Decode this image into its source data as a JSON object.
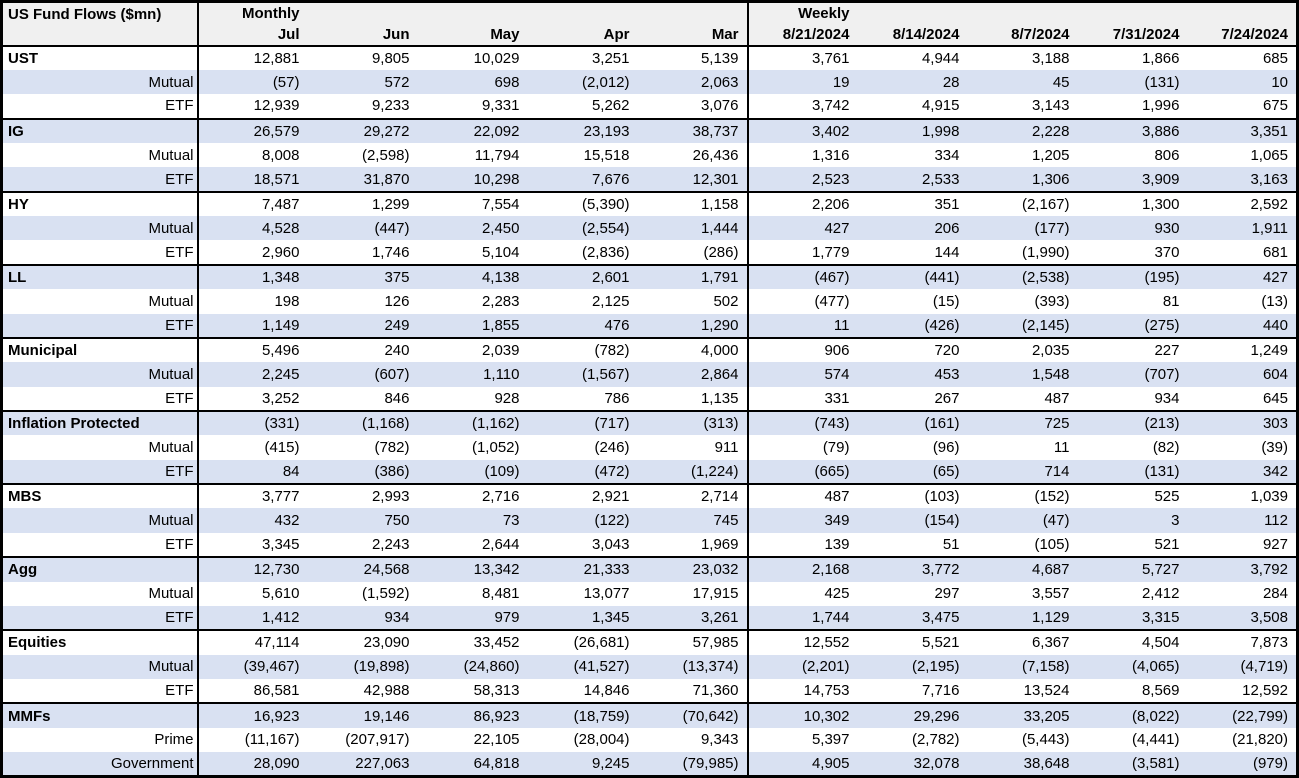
{
  "chart_data": {
    "type": "table",
    "title": "US Fund Flows ($mn)",
    "units": "$mn",
    "layout": {
      "striped": true,
      "stripe_color": "#d9e1f2",
      "header_bg": "#f0f0f0",
      "border_color": "#000000"
    },
    "sections": {
      "monthly": {
        "label": "Monthly",
        "columns": [
          "Jul",
          "Jun",
          "May",
          "Apr",
          "Mar"
        ]
      },
      "weekly": {
        "label": "Weekly",
        "columns": [
          "8/21/2024",
          "8/14/2024",
          "8/7/2024",
          "7/31/2024",
          "7/24/2024"
        ]
      }
    },
    "groups": [
      {
        "name": "UST",
        "rows": [
          {
            "label": "UST",
            "is_total": true,
            "monthly": [
              "12,881",
              "9,805",
              "10,029",
              "3,251",
              "5,139"
            ],
            "weekly": [
              "3,761",
              "4,944",
              "3,188",
              "1,866",
              "685"
            ]
          },
          {
            "label": "Mutual",
            "is_total": false,
            "monthly": [
              "(57)",
              "572",
              "698",
              "(2,012)",
              "2,063"
            ],
            "weekly": [
              "19",
              "28",
              "45",
              "(131)",
              "10"
            ]
          },
          {
            "label": "ETF",
            "is_total": false,
            "monthly": [
              "12,939",
              "9,233",
              "9,331",
              "5,262",
              "3,076"
            ],
            "weekly": [
              "3,742",
              "4,915",
              "3,143",
              "1,996",
              "675"
            ]
          }
        ]
      },
      {
        "name": "IG",
        "rows": [
          {
            "label": "IG",
            "is_total": true,
            "monthly": [
              "26,579",
              "29,272",
              "22,092",
              "23,193",
              "38,737"
            ],
            "weekly": [
              "3,402",
              "1,998",
              "2,228",
              "3,886",
              "3,351"
            ]
          },
          {
            "label": "Mutual",
            "is_total": false,
            "monthly": [
              "8,008",
              "(2,598)",
              "11,794",
              "15,518",
              "26,436"
            ],
            "weekly": [
              "1,316",
              "334",
              "1,205",
              "806",
              "1,065"
            ]
          },
          {
            "label": "ETF",
            "is_total": false,
            "monthly": [
              "18,571",
              "31,870",
              "10,298",
              "7,676",
              "12,301"
            ],
            "weekly": [
              "2,523",
              "2,533",
              "1,306",
              "3,909",
              "3,163"
            ]
          }
        ]
      },
      {
        "name": "HY",
        "rows": [
          {
            "label": "HY",
            "is_total": true,
            "monthly": [
              "7,487",
              "1,299",
              "7,554",
              "(5,390)",
              "1,158"
            ],
            "weekly": [
              "2,206",
              "351",
              "(2,167)",
              "1,300",
              "2,592"
            ]
          },
          {
            "label": "Mutual",
            "is_total": false,
            "monthly": [
              "4,528",
              "(447)",
              "2,450",
              "(2,554)",
              "1,444"
            ],
            "weekly": [
              "427",
              "206",
              "(177)",
              "930",
              "1,911"
            ]
          },
          {
            "label": "ETF",
            "is_total": false,
            "monthly": [
              "2,960",
              "1,746",
              "5,104",
              "(2,836)",
              "(286)"
            ],
            "weekly": [
              "1,779",
              "144",
              "(1,990)",
              "370",
              "681"
            ]
          }
        ]
      },
      {
        "name": "LL",
        "rows": [
          {
            "label": "LL",
            "is_total": true,
            "monthly": [
              "1,348",
              "375",
              "4,138",
              "2,601",
              "1,791"
            ],
            "weekly": [
              "(467)",
              "(441)",
              "(2,538)",
              "(195)",
              "427"
            ]
          },
          {
            "label": "Mutual",
            "is_total": false,
            "monthly": [
              "198",
              "126",
              "2,283",
              "2,125",
              "502"
            ],
            "weekly": [
              "(477)",
              "(15)",
              "(393)",
              "81",
              "(13)"
            ]
          },
          {
            "label": "ETF",
            "is_total": false,
            "monthly": [
              "1,149",
              "249",
              "1,855",
              "476",
              "1,290"
            ],
            "weekly": [
              "11",
              "(426)",
              "(2,145)",
              "(275)",
              "440"
            ]
          }
        ]
      },
      {
        "name": "Municipal",
        "rows": [
          {
            "label": "Municipal",
            "is_total": true,
            "monthly": [
              "5,496",
              "240",
              "2,039",
              "(782)",
              "4,000"
            ],
            "weekly": [
              "906",
              "720",
              "2,035",
              "227",
              "1,249"
            ]
          },
          {
            "label": "Mutual",
            "is_total": false,
            "monthly": [
              "2,245",
              "(607)",
              "1,110",
              "(1,567)",
              "2,864"
            ],
            "weekly": [
              "574",
              "453",
              "1,548",
              "(707)",
              "604"
            ]
          },
          {
            "label": "ETF",
            "is_total": false,
            "monthly": [
              "3,252",
              "846",
              "928",
              "786",
              "1,135"
            ],
            "weekly": [
              "331",
              "267",
              "487",
              "934",
              "645"
            ]
          }
        ]
      },
      {
        "name": "Inflation Protected",
        "rows": [
          {
            "label": "Inflation Protected",
            "is_total": true,
            "monthly": [
              "(331)",
              "(1,168)",
              "(1,162)",
              "(717)",
              "(313)"
            ],
            "weekly": [
              "(743)",
              "(161)",
              "725",
              "(213)",
              "303"
            ]
          },
          {
            "label": "Mutual",
            "is_total": false,
            "monthly": [
              "(415)",
              "(782)",
              "(1,052)",
              "(246)",
              "911"
            ],
            "weekly": [
              "(79)",
              "(96)",
              "11",
              "(82)",
              "(39)"
            ]
          },
          {
            "label": "ETF",
            "is_total": false,
            "monthly": [
              "84",
              "(386)",
              "(109)",
              "(472)",
              "(1,224)"
            ],
            "weekly": [
              "(665)",
              "(65)",
              "714",
              "(131)",
              "342"
            ]
          }
        ]
      },
      {
        "name": "MBS",
        "rows": [
          {
            "label": "MBS",
            "is_total": true,
            "monthly": [
              "3,777",
              "2,993",
              "2,716",
              "2,921",
              "2,714"
            ],
            "weekly": [
              "487",
              "(103)",
              "(152)",
              "525",
              "1,039"
            ]
          },
          {
            "label": "Mutual",
            "is_total": false,
            "monthly": [
              "432",
              "750",
              "73",
              "(122)",
              "745"
            ],
            "weekly": [
              "349",
              "(154)",
              "(47)",
              "3",
              "112"
            ]
          },
          {
            "label": "ETF",
            "is_total": false,
            "monthly": [
              "3,345",
              "2,243",
              "2,644",
              "3,043",
              "1,969"
            ],
            "weekly": [
              "139",
              "51",
              "(105)",
              "521",
              "927"
            ]
          }
        ]
      },
      {
        "name": "Agg",
        "rows": [
          {
            "label": "Agg",
            "is_total": true,
            "monthly": [
              "12,730",
              "24,568",
              "13,342",
              "21,333",
              "23,032"
            ],
            "weekly": [
              "2,168",
              "3,772",
              "4,687",
              "5,727",
              "3,792"
            ]
          },
          {
            "label": "Mutual",
            "is_total": false,
            "monthly": [
              "5,610",
              "(1,592)",
              "8,481",
              "13,077",
              "17,915"
            ],
            "weekly": [
              "425",
              "297",
              "3,557",
              "2,412",
              "284"
            ]
          },
          {
            "label": "ETF",
            "is_total": false,
            "monthly": [
              "1,412",
              "934",
              "979",
              "1,345",
              "3,261"
            ],
            "weekly": [
              "1,744",
              "3,475",
              "1,129",
              "3,315",
              "3,508"
            ]
          }
        ]
      },
      {
        "name": "Equities",
        "rows": [
          {
            "label": "Equities",
            "is_total": true,
            "monthly": [
              "47,114",
              "23,090",
              "33,452",
              "(26,681)",
              "57,985"
            ],
            "weekly": [
              "12,552",
              "5,521",
              "6,367",
              "4,504",
              "7,873"
            ]
          },
          {
            "label": "Mutual",
            "is_total": false,
            "monthly": [
              "(39,467)",
              "(19,898)",
              "(24,860)",
              "(41,527)",
              "(13,374)"
            ],
            "weekly": [
              "(2,201)",
              "(2,195)",
              "(7,158)",
              "(4,065)",
              "(4,719)"
            ]
          },
          {
            "label": "ETF",
            "is_total": false,
            "monthly": [
              "86,581",
              "42,988",
              "58,313",
              "14,846",
              "71,360"
            ],
            "weekly": [
              "14,753",
              "7,716",
              "13,524",
              "8,569",
              "12,592"
            ]
          }
        ]
      },
      {
        "name": "MMFs",
        "rows": [
          {
            "label": "MMFs",
            "is_total": true,
            "monthly": [
              "16,923",
              "19,146",
              "86,923",
              "(18,759)",
              "(70,642)"
            ],
            "weekly": [
              "10,302",
              "29,296",
              "33,205",
              "(8,022)",
              "(22,799)"
            ]
          },
          {
            "label": "Prime",
            "is_total": false,
            "monthly": [
              "(11,167)",
              "(207,917)",
              "22,105",
              "(28,004)",
              "9,343"
            ],
            "weekly": [
              "5,397",
              "(2,782)",
              "(5,443)",
              "(4,441)",
              "(21,820)"
            ]
          },
          {
            "label": "Government",
            "is_total": false,
            "monthly": [
              "28,090",
              "227,063",
              "64,818",
              "9,245",
              "(79,985)"
            ],
            "weekly": [
              "4,905",
              "32,078",
              "38,648",
              "(3,581)",
              "(979)"
            ]
          }
        ]
      }
    ]
  }
}
